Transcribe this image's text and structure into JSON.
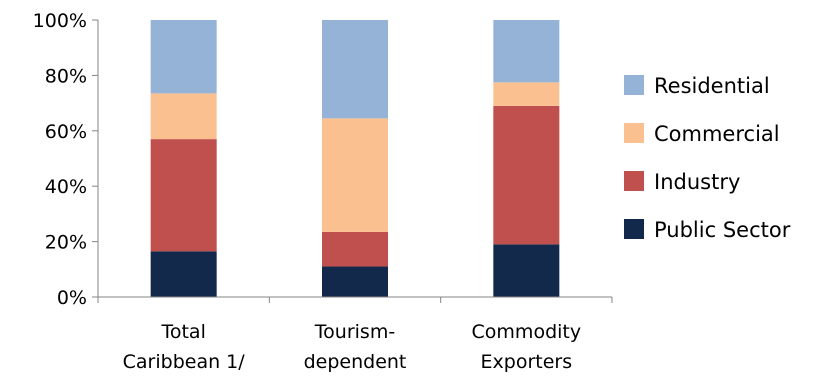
{
  "chart_data": {
    "type": "bar",
    "stacked": true,
    "percent": true,
    "categories": [
      [
        "Total",
        "Caribbean 1/"
      ],
      [
        "Tourism-",
        "dependent"
      ],
      [
        "Commodity",
        "Exporters"
      ]
    ],
    "series": [
      {
        "name": "Public Sector",
        "color": "#13294b",
        "values": [
          16.5,
          11,
          19
        ]
      },
      {
        "name": "Industry",
        "color": "#c0504d",
        "values": [
          40.5,
          12.5,
          50
        ]
      },
      {
        "name": "Commercial",
        "color": "#fac090",
        "values": [
          16.5,
          41,
          8.5
        ]
      },
      {
        "name": "Residential",
        "color": "#95b3d7",
        "values": [
          26.5,
          35.5,
          22.5
        ]
      }
    ],
    "ylim": [
      0,
      100
    ],
    "yticks": [
      "0%",
      "20%",
      "40%",
      "60%",
      "80%",
      "100%"
    ],
    "grid": false,
    "legend": {
      "position": "right",
      "order": [
        "Residential",
        "Commercial",
        "Industry",
        "Public Sector"
      ]
    }
  }
}
